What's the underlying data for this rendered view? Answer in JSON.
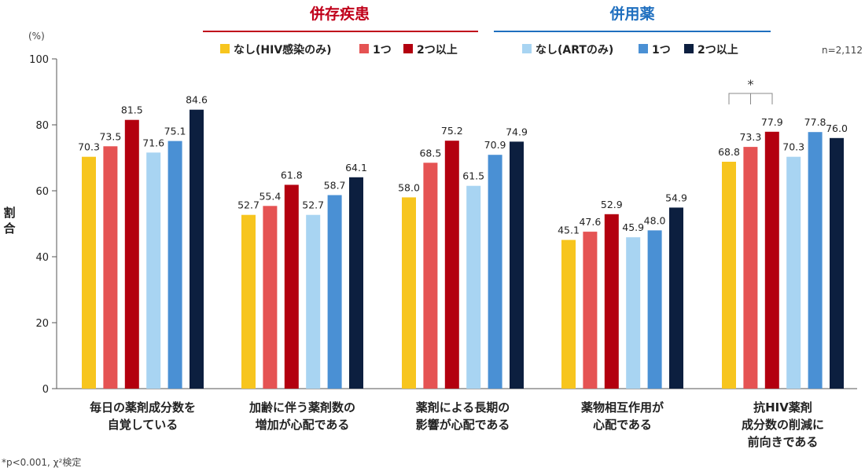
{
  "header": {
    "group1_title": "併存疾患",
    "group2_title": "併用薬",
    "group1_color": "#c0001a",
    "group2_color": "#1f6fbf"
  },
  "sample_size": "n=2,112",
  "unit_label": "(%)",
  "ylabel": "割合",
  "footnote": "*p<0.001, χ²検定",
  "significance_mark": "*",
  "chart_data": {
    "type": "bar",
    "ylim": [
      0,
      100
    ],
    "yticks": [
      "0",
      "20",
      "40",
      "60",
      "80",
      "100"
    ],
    "grid": false,
    "legend_placement": "top",
    "categories": [
      [
        "毎日の薬剤成分数を",
        "自覚している"
      ],
      [
        "加齢に伴う薬剤数の",
        "増加が心配である"
      ],
      [
        "薬剤による長期の",
        "影響が心配である"
      ],
      [
        "薬物相互作用が",
        "心配である"
      ],
      [
        "抗HIV薬剤",
        "成分数の削減に",
        "前向きである"
      ]
    ],
    "series": [
      {
        "name": "なし(HIV感染のみ)",
        "color": "#f7c51e",
        "values": [
          70.3,
          52.7,
          58.0,
          45.1,
          68.8
        ],
        "labels": [
          "70.3",
          "52.7",
          "58.0",
          "45.1",
          "68.8"
        ]
      },
      {
        "name": "1つ",
        "color": "#e55353",
        "values": [
          73.5,
          55.4,
          68.5,
          47.6,
          73.3
        ],
        "labels": [
          "73.5",
          "55.4",
          "68.5",
          "47.6",
          "73.3"
        ]
      },
      {
        "name": "2つ以上",
        "color": "#b3000f",
        "values": [
          81.5,
          61.8,
          75.2,
          52.9,
          77.9
        ],
        "labels": [
          "81.5",
          "61.8",
          "75.2",
          "52.9",
          "77.9"
        ]
      },
      {
        "name": "なし(ARTのみ)",
        "color": "#a8d4f2",
        "values": [
          71.6,
          52.7,
          61.5,
          45.9,
          70.3
        ],
        "labels": [
          "71.6",
          "52.7",
          "61.5",
          "45.9",
          "70.3"
        ]
      },
      {
        "name": "1つ",
        "color": "#4a90d4",
        "values": [
          75.1,
          58.7,
          70.9,
          48.0,
          77.8
        ],
        "labels": [
          "75.1",
          "58.7",
          "70.9",
          "48.0",
          "77.8"
        ]
      },
      {
        "name": "2つ以上",
        "color": "#0c1f3f",
        "values": [
          84.6,
          64.1,
          74.9,
          54.9,
          76.0
        ],
        "labels": [
          "84.6",
          "64.1",
          "74.9",
          "54.9",
          "76.0"
        ]
      }
    ]
  }
}
